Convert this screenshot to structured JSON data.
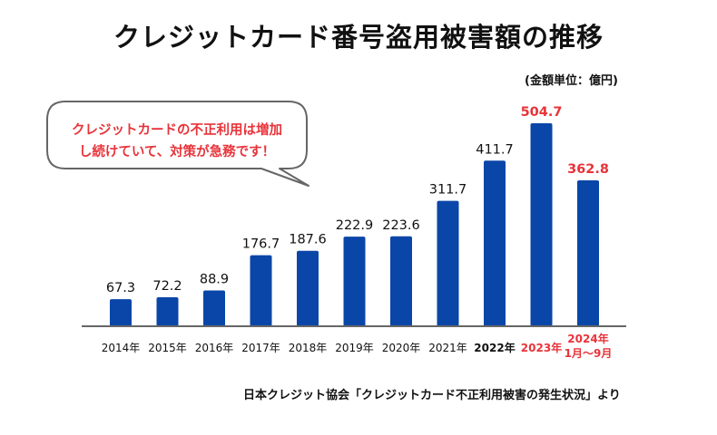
{
  "title": "クレジットカード番号盗用被害額の推移",
  "unit_label": "(金額単位：億円)",
  "source_note": "日本クレジット協会「クレジットカード不正利用被害の発生状況」より",
  "callout": {
    "line1": "クレジットカードの不正利用は増加",
    "line2": "し続けていて、対策が急務です！"
  },
  "colors": {
    "bar": "#0a46a8",
    "highlight": "#e8333a",
    "text": "#111111",
    "baseline": "#666666"
  },
  "chart_data": {
    "type": "bar",
    "title": "クレジットカード番号盗用被害額の推移",
    "ylabel": "(金額単位：億円)",
    "ylim": [
      0,
      504.7
    ],
    "grid": false,
    "categories": [
      [
        "2014年"
      ],
      [
        "2015年"
      ],
      [
        "2016年"
      ],
      [
        "2017年"
      ],
      [
        "2018年"
      ],
      [
        "2019年"
      ],
      [
        "2020年"
      ],
      [
        "2021年"
      ],
      [
        "2022年"
      ],
      [
        "2023年"
      ],
      [
        "2024年",
        "1月～9月"
      ]
    ],
    "values": [
      67.3,
      72.2,
      88.9,
      176.7,
      187.6,
      222.9,
      223.6,
      311.7,
      411.7,
      504.7,
      362.8
    ],
    "value_labels": [
      "67.3",
      "72.2",
      "88.9",
      "176.7",
      "187.6",
      "222.9",
      "223.6",
      "311.7",
      "411.7",
      "504.7",
      "362.8"
    ],
    "label_style": [
      "normal",
      "normal",
      "normal",
      "normal",
      "normal",
      "normal",
      "normal",
      "normal",
      "bold",
      "red",
      "red"
    ]
  }
}
